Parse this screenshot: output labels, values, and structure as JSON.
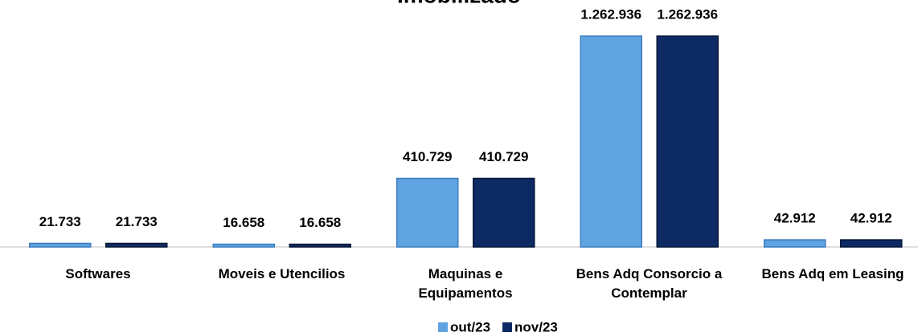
{
  "chart_data": {
    "type": "bar",
    "title": "Imobilizado",
    "categories": [
      "Softwares",
      "Moveis e Utencilios",
      "Maquinas e\nEquipamentos",
      "Bens Adq Consorcio a\nContemplar",
      "Bens Adq em Leasing"
    ],
    "series": [
      {
        "name": "out/23",
        "color": "#5fa3e0",
        "values": [
          21733,
          16658,
          410729,
          1262936,
          42912
        ],
        "value_labels": [
          "21.733",
          "16.658",
          "410.729",
          "1.262.936",
          "42.912"
        ]
      },
      {
        "name": "nov/23",
        "color": "#0e2a64",
        "values": [
          21733,
          16658,
          410729,
          1262936,
          42912
        ],
        "value_labels": [
          "21.733",
          "16.658",
          "410.729",
          "1.262.936",
          "42.912"
        ]
      }
    ],
    "legend": "bottom"
  }
}
